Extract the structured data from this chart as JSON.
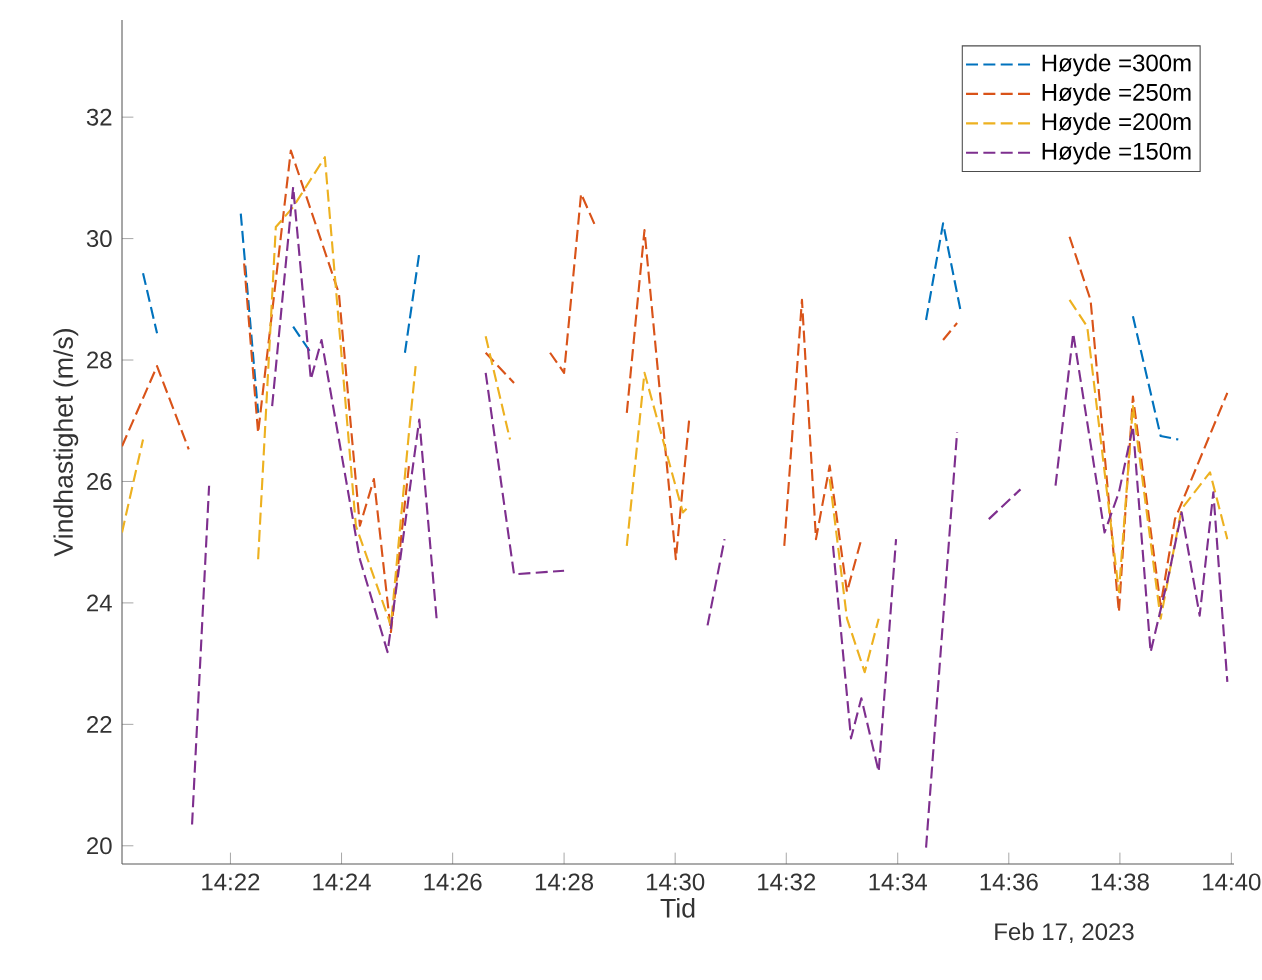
{
  "chart_data": {
    "type": "line",
    "xlabel": "Tid",
    "ylabel": "Vindhastighet (m/s)",
    "legend": "top right",
    "line_style": "dashed",
    "xlim": [
      14.3342,
      14.6675
    ],
    "ylim": [
      19.7,
      33.6
    ],
    "xticks": [
      {
        "value": 14.3667,
        "label": "14:22"
      },
      {
        "value": 14.4,
        "label": "14:24"
      },
      {
        "value": 14.4333,
        "label": "14:26"
      },
      {
        "value": 14.4667,
        "label": "14:28"
      },
      {
        "value": 14.5,
        "label": "14:30"
      },
      {
        "value": 14.5333,
        "label": "14:32"
      },
      {
        "value": 14.5667,
        "label": "14:34"
      },
      {
        "value": 14.6,
        "label": "14:36"
      },
      {
        "value": 14.6333,
        "label": "14:38"
      },
      {
        "value": 14.6667,
        "label": "14:40"
      }
    ],
    "yticks": [
      20,
      22,
      24,
      26,
      28,
      30,
      32
    ],
    "annotations": [
      "Feb 17, 2023"
    ],
    "series": [
      {
        "name": "Høyde =300m",
        "color": "#0072bd",
        "x": [
          14.3405,
          14.3447,
          14.36,
          14.3698,
          14.375,
          14.38,
          14.3855,
          14.3908,
          14.4,
          14.419,
          14.4233,
          14.5,
          14.5752,
          14.5803,
          14.5857,
          14.61,
          14.6372,
          14.6455,
          14.6508
        ],
        "values": [
          29.43,
          28.44,
          null,
          30.41,
          27.13,
          null,
          28.55,
          28.12,
          null,
          28.12,
          29.76,
          null,
          28.66,
          30.25,
          28.77,
          null,
          28.72,
          26.75,
          26.69
        ]
      },
      {
        "name": "Høyde =250m",
        "color": "#d95319",
        "x": [
          14.3342,
          14.3447,
          14.3542,
          14.36,
          14.3708,
          14.375,
          14.3848,
          14.3992,
          14.4055,
          14.4097,
          14.4148,
          14.4202,
          14.43,
          14.4432,
          14.4517,
          14.455,
          14.4625,
          14.4667,
          14.4718,
          14.4762,
          14.48,
          14.4855,
          14.4908,
          14.5002,
          14.5043,
          14.52,
          14.5327,
          14.538,
          14.5422,
          14.5463,
          14.5515,
          14.5558,
          14.57,
          14.5803,
          14.5845,
          14.6,
          14.6182,
          14.6245,
          14.633,
          14.6372,
          14.6455,
          14.6498,
          14.6655
        ],
        "values": [
          26.58,
          27.9,
          26.53,
          null,
          29.59,
          26.8,
          31.45,
          29.1,
          25.27,
          26.04,
          23.52,
          26.26,
          null,
          28.12,
          27.62,
          null,
          28.12,
          27.79,
          30.74,
          30.19,
          null,
          27.13,
          30.14,
          24.72,
          27.08,
          null,
          24.94,
          28.99,
          25.05,
          26.26,
          24.18,
          25.05,
          null,
          28.33,
          28.61,
          null,
          30.03,
          28.99,
          23.85,
          27.4,
          23.96,
          25.38,
          27.46
        ]
      },
      {
        "name": "Høyde =200m",
        "color": "#edb120",
        "x": [
          14.3342,
          14.3405,
          14.36,
          14.375,
          14.3803,
          14.3855,
          14.395,
          14.4043,
          14.4148,
          14.4202,
          14.4222,
          14.43,
          14.4432,
          14.4505,
          14.46,
          14.4855,
          14.4908,
          14.5023,
          14.5043,
          14.52,
          14.5463,
          14.5515,
          14.5568,
          14.561,
          14.59,
          14.6182,
          14.6235,
          14.633,
          14.6372,
          14.6455,
          14.6518,
          14.6603,
          14.6655
        ],
        "values": [
          25.16,
          26.69,
          null,
          24.72,
          30.19,
          30.52,
          31.34,
          25.27,
          23.63,
          26.8,
          27.9,
          null,
          28.39,
          26.69,
          null,
          24.94,
          27.79,
          25.49,
          25.6,
          null,
          26.04,
          23.74,
          22.86,
          23.74,
          null,
          28.99,
          28.55,
          24.18,
          27.24,
          23.74,
          25.55,
          26.15,
          25.05
        ]
      },
      {
        "name": "Høyde =150m",
        "color": "#7e2f8e",
        "x": [
          14.3552,
          14.3603,
          14.365,
          14.3792,
          14.3855,
          14.3908,
          14.394,
          14.4055,
          14.4138,
          14.4233,
          14.4285,
          14.435,
          14.4432,
          14.4517,
          14.4667,
          14.49,
          14.5097,
          14.5148,
          14.53,
          14.5473,
          14.5527,
          14.5558,
          14.561,
          14.5662,
          14.57,
          14.5752,
          14.5845,
          14.59,
          14.594,
          14.6035,
          14.61,
          14.614,
          14.6193,
          14.6287,
          14.633,
          14.6372,
          14.6425,
          14.6477,
          14.6518,
          14.6572,
          14.6613,
          14.6655
        ],
        "values": [
          20.35,
          25.93,
          null,
          27.24,
          30.85,
          27.68,
          28.33,
          24.72,
          23.19,
          27.02,
          23.74,
          null,
          27.79,
          24.47,
          24.53,
          null,
          23.63,
          25.05,
          null,
          24.94,
          21.77,
          22.43,
          21.22,
          25.05,
          null,
          19.97,
          26.81,
          null,
          25.38,
          25.87,
          null,
          25.93,
          28.44,
          25.16,
          25.82,
          26.91,
          23.19,
          24.4,
          25.49,
          23.79,
          25.82,
          22.7
        ]
      }
    ]
  }
}
